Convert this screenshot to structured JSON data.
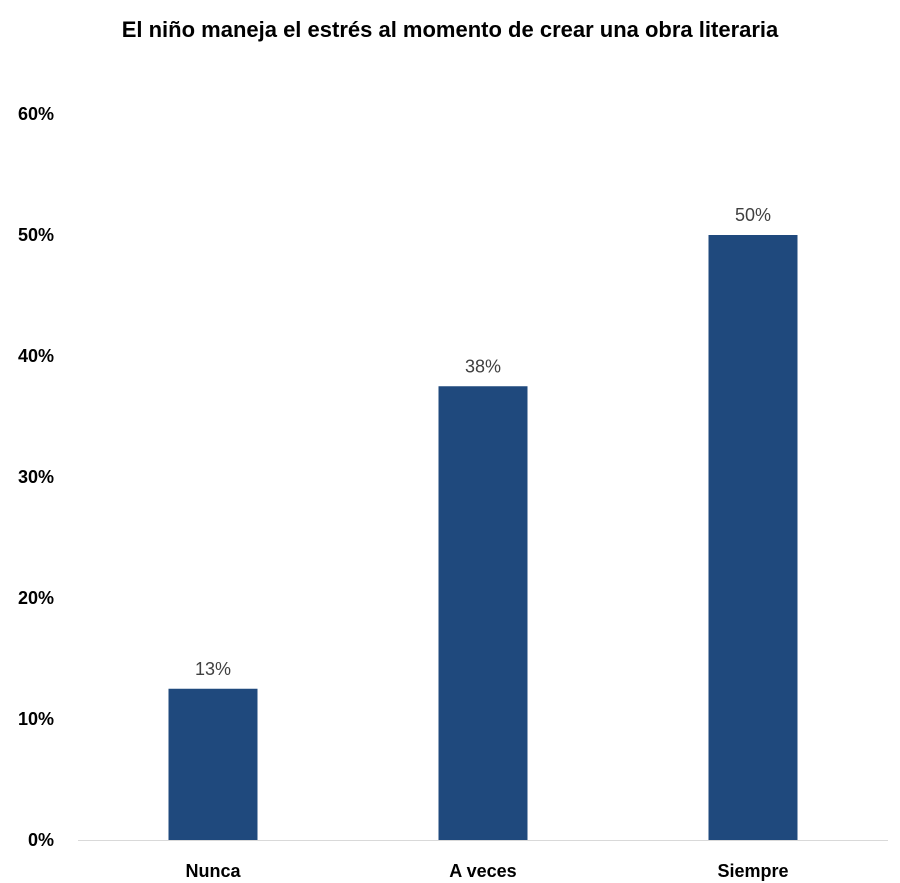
{
  "chart_data": {
    "type": "bar",
    "title": "El niño maneja el estrés al momento de crear una obra literaria",
    "categories": [
      "Nunca",
      "A veces",
      "Siempre"
    ],
    "values": [
      12.5,
      37.5,
      50
    ],
    "data_labels": [
      "13%",
      "38%",
      "50%"
    ],
    "y_ticks": [
      "0%",
      "10%",
      "20%",
      "30%",
      "40%",
      "50%",
      "60%"
    ],
    "ylim": [
      0,
      60
    ],
    "bar_color": "#1F497D",
    "grid": false,
    "legend": "none"
  }
}
